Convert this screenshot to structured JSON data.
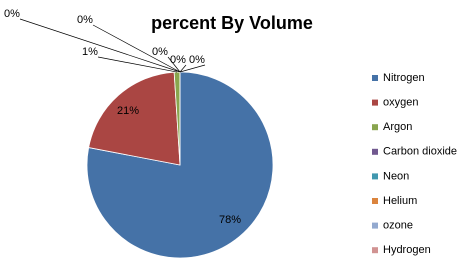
{
  "chart_data": {
    "type": "pie",
    "title": "percent By Volume",
    "categories": [
      "Nitrogen",
      "oxygen",
      "Argon",
      "Carbon dioxide",
      "Neon",
      "Helium",
      "ozone",
      "Hydrogen"
    ],
    "values": [
      78,
      21,
      1,
      0,
      0,
      0,
      0,
      0
    ],
    "value_labels": [
      "78%",
      "21%",
      "1%",
      "0%",
      "0%",
      "0%",
      "0%",
      "0%"
    ],
    "colors": [
      "#4572a7",
      "#aa4643",
      "#89a54e",
      "#71588f",
      "#4198af",
      "#db843d",
      "#93a9cf",
      "#d19392"
    ],
    "legend": "right"
  }
}
